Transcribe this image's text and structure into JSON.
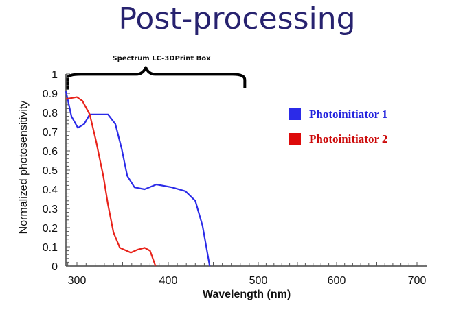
{
  "slide": {
    "title": "Post-processing"
  },
  "chart_data": {
    "type": "line",
    "title": "",
    "xlabel": "Wavelength (nm)",
    "ylabel": "Normalized photosensitivity",
    "xlim": [
      288,
      713
    ],
    "ylim": [
      0,
      1
    ],
    "x_ticks": [
      300,
      400,
      500,
      600,
      700
    ],
    "x_tick_labels": [
      "300",
      "400",
      "500",
      "600",
      "700"
    ],
    "y_ticks": [
      0,
      0.1,
      0.2,
      0.3,
      0.4,
      0.5,
      0.6,
      0.7,
      0.8,
      0.9,
      1
    ],
    "y_tick_labels": [
      "0",
      "0.1",
      "0.2",
      "0.3",
      "0.4",
      "0.5",
      "0.6",
      "0.7",
      "0.8",
      "0.9",
      "1"
    ],
    "grid": false,
    "legend_position": "right",
    "annotation": {
      "text": "Spectrum LC-3DPrint Box",
      "type": "brace",
      "x_range": [
        288,
        485
      ],
      "y": 0.97
    },
    "series": [
      {
        "name": "Photoinitiator 1",
        "color": "#2b2be8",
        "x": [
          288,
          294,
          301,
          308,
          314,
          325,
          334,
          342,
          349,
          355,
          363,
          374,
          387,
          404,
          419,
          430,
          438,
          446
        ],
        "y": [
          0.91,
          0.78,
          0.72,
          0.74,
          0.79,
          0.79,
          0.79,
          0.74,
          0.61,
          0.47,
          0.41,
          0.4,
          0.425,
          0.41,
          0.39,
          0.34,
          0.21,
          0.0
        ]
      },
      {
        "name": "Photoinitiator 2",
        "color": "#e8231a",
        "x": [
          288,
          300,
          306,
          314,
          321,
          329,
          334,
          340,
          347,
          359,
          366,
          374,
          380,
          386
        ],
        "y": [
          0.87,
          0.88,
          0.86,
          0.79,
          0.65,
          0.465,
          0.32,
          0.175,
          0.095,
          0.07,
          0.085,
          0.095,
          0.08,
          0.0
        ]
      }
    ],
    "legend_colors": [
      "#2b2be8",
      "#dd0a0a"
    ],
    "legend_text_colors": [
      "#2222dd",
      "#cc0a0a"
    ]
  }
}
